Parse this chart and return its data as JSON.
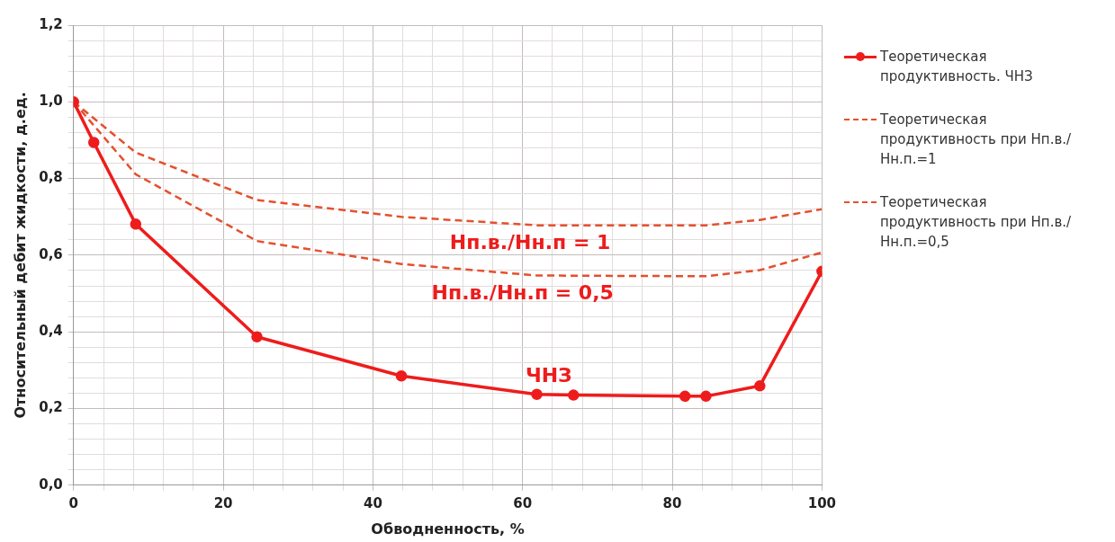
{
  "chart_data": {
    "type": "line",
    "xlabel": "Обводненность, %",
    "ylabel": "Относительный дебит жидкости, д.ед.",
    "xlim": [
      0,
      100
    ],
    "ylim": [
      0,
      1.2
    ],
    "xticks": [
      0,
      {
        "value": 4,
        "label": null
      },
      {
        "value": 8,
        "label": null
      },
      {
        "value": 12,
        "label": null
      },
      {
        "value": 16,
        "label": null
      },
      20,
      {
        "value": 24,
        "label": null
      },
      {
        "value": 28,
        "label": null
      },
      {
        "value": 32,
        "label": null
      },
      {
        "value": 36,
        "label": null
      },
      40,
      {
        "value": 44,
        "label": null
      },
      {
        "value": 48,
        "label": null
      },
      {
        "value": 52,
        "label": null
      },
      {
        "value": 56,
        "label": null
      },
      60,
      {
        "value": 64,
        "label": null
      },
      {
        "value": 68,
        "label": null
      },
      {
        "value": 72,
        "label": null
      },
      {
        "value": 76,
        "label": null
      },
      80,
      {
        "value": 84,
        "label": null
      },
      {
        "value": 88,
        "label": null
      },
      {
        "value": 92,
        "label": null
      },
      {
        "value": 96,
        "label": null
      },
      100
    ],
    "yticks": [
      {
        "value": 0,
        "label": "0,0"
      },
      {
        "value": 0.04,
        "label": null
      },
      {
        "value": 0.08,
        "label": null
      },
      {
        "value": 0.12,
        "label": null
      },
      {
        "value": 0.16,
        "label": null
      },
      {
        "value": 0.2,
        "label": "0,2"
      },
      {
        "value": 0.24,
        "label": null
      },
      {
        "value": 0.28,
        "label": null
      },
      {
        "value": 0.32,
        "label": null
      },
      {
        "value": 0.36,
        "label": null
      },
      {
        "value": 0.4,
        "label": "0,4"
      },
      {
        "value": 0.44,
        "label": null
      },
      {
        "value": 0.48,
        "label": null
      },
      {
        "value": 0.52,
        "label": null
      },
      {
        "value": 0.56,
        "label": null
      },
      {
        "value": 0.6,
        "label": "0,6"
      },
      {
        "value": 0.64,
        "label": null
      },
      {
        "value": 0.68,
        "label": null
      },
      {
        "value": 0.72,
        "label": null
      },
      {
        "value": 0.76,
        "label": null
      },
      {
        "value": 0.8,
        "label": "0,8"
      },
      {
        "value": 0.84,
        "label": null
      },
      {
        "value": 0.88,
        "label": null
      },
      {
        "value": 0.92,
        "label": null
      },
      {
        "value": 0.96,
        "label": null
      },
      {
        "value": 1.0,
        "label": "1,0"
      },
      {
        "value": 1.04,
        "label": null
      },
      {
        "value": 1.08,
        "label": null
      },
      {
        "value": 1.12,
        "label": null
      },
      {
        "value": 1.16,
        "label": null
      },
      {
        "value": 1.2,
        "label": "1,2"
      }
    ],
    "grid": true,
    "legend": "right",
    "series": [
      {
        "name": "Теоретическая продуктивность. ЧНЗ",
        "color": "#ee1c1c",
        "marker": "circle",
        "line_style": "solid",
        "x": [
          0,
          2.7,
          8.3,
          24.5,
          43.8,
          61.9,
          66.8,
          81.7,
          84.5,
          91.7,
          100
        ],
        "values": [
          1.0,
          0.894,
          0.681,
          0.387,
          0.285,
          0.237,
          0.235,
          0.232,
          0.232,
          0.259,
          0.558
        ]
      },
      {
        "name": "Теоретическая продуктивность при Нп.в./Нн.п.=1",
        "color": "#e4502e",
        "marker": "none",
        "line_style": "dashed",
        "x": [
          0,
          8.3,
          24.5,
          43.8,
          61.9,
          84.5,
          91.7,
          100
        ],
        "values": [
          1.0,
          0.868,
          0.744,
          0.7,
          0.678,
          0.678,
          0.692,
          0.72
        ]
      },
      {
        "name": "Теоретическая продуктивность при Нп.в./Нн.п.=0,5",
        "color": "#e4502e",
        "marker": "none",
        "line_style": "dashed",
        "x": [
          0,
          8.3,
          24.5,
          43.8,
          61.9,
          84.5,
          91.7,
          100
        ],
        "values": [
          1.0,
          0.811,
          0.637,
          0.577,
          0.547,
          0.545,
          0.561,
          0.607
        ]
      }
    ],
    "annotations": [
      "Нп.в./Нн.п = 1",
      "Нп.в./Нн.п = 0,5",
      "ЧНЗ"
    ]
  }
}
